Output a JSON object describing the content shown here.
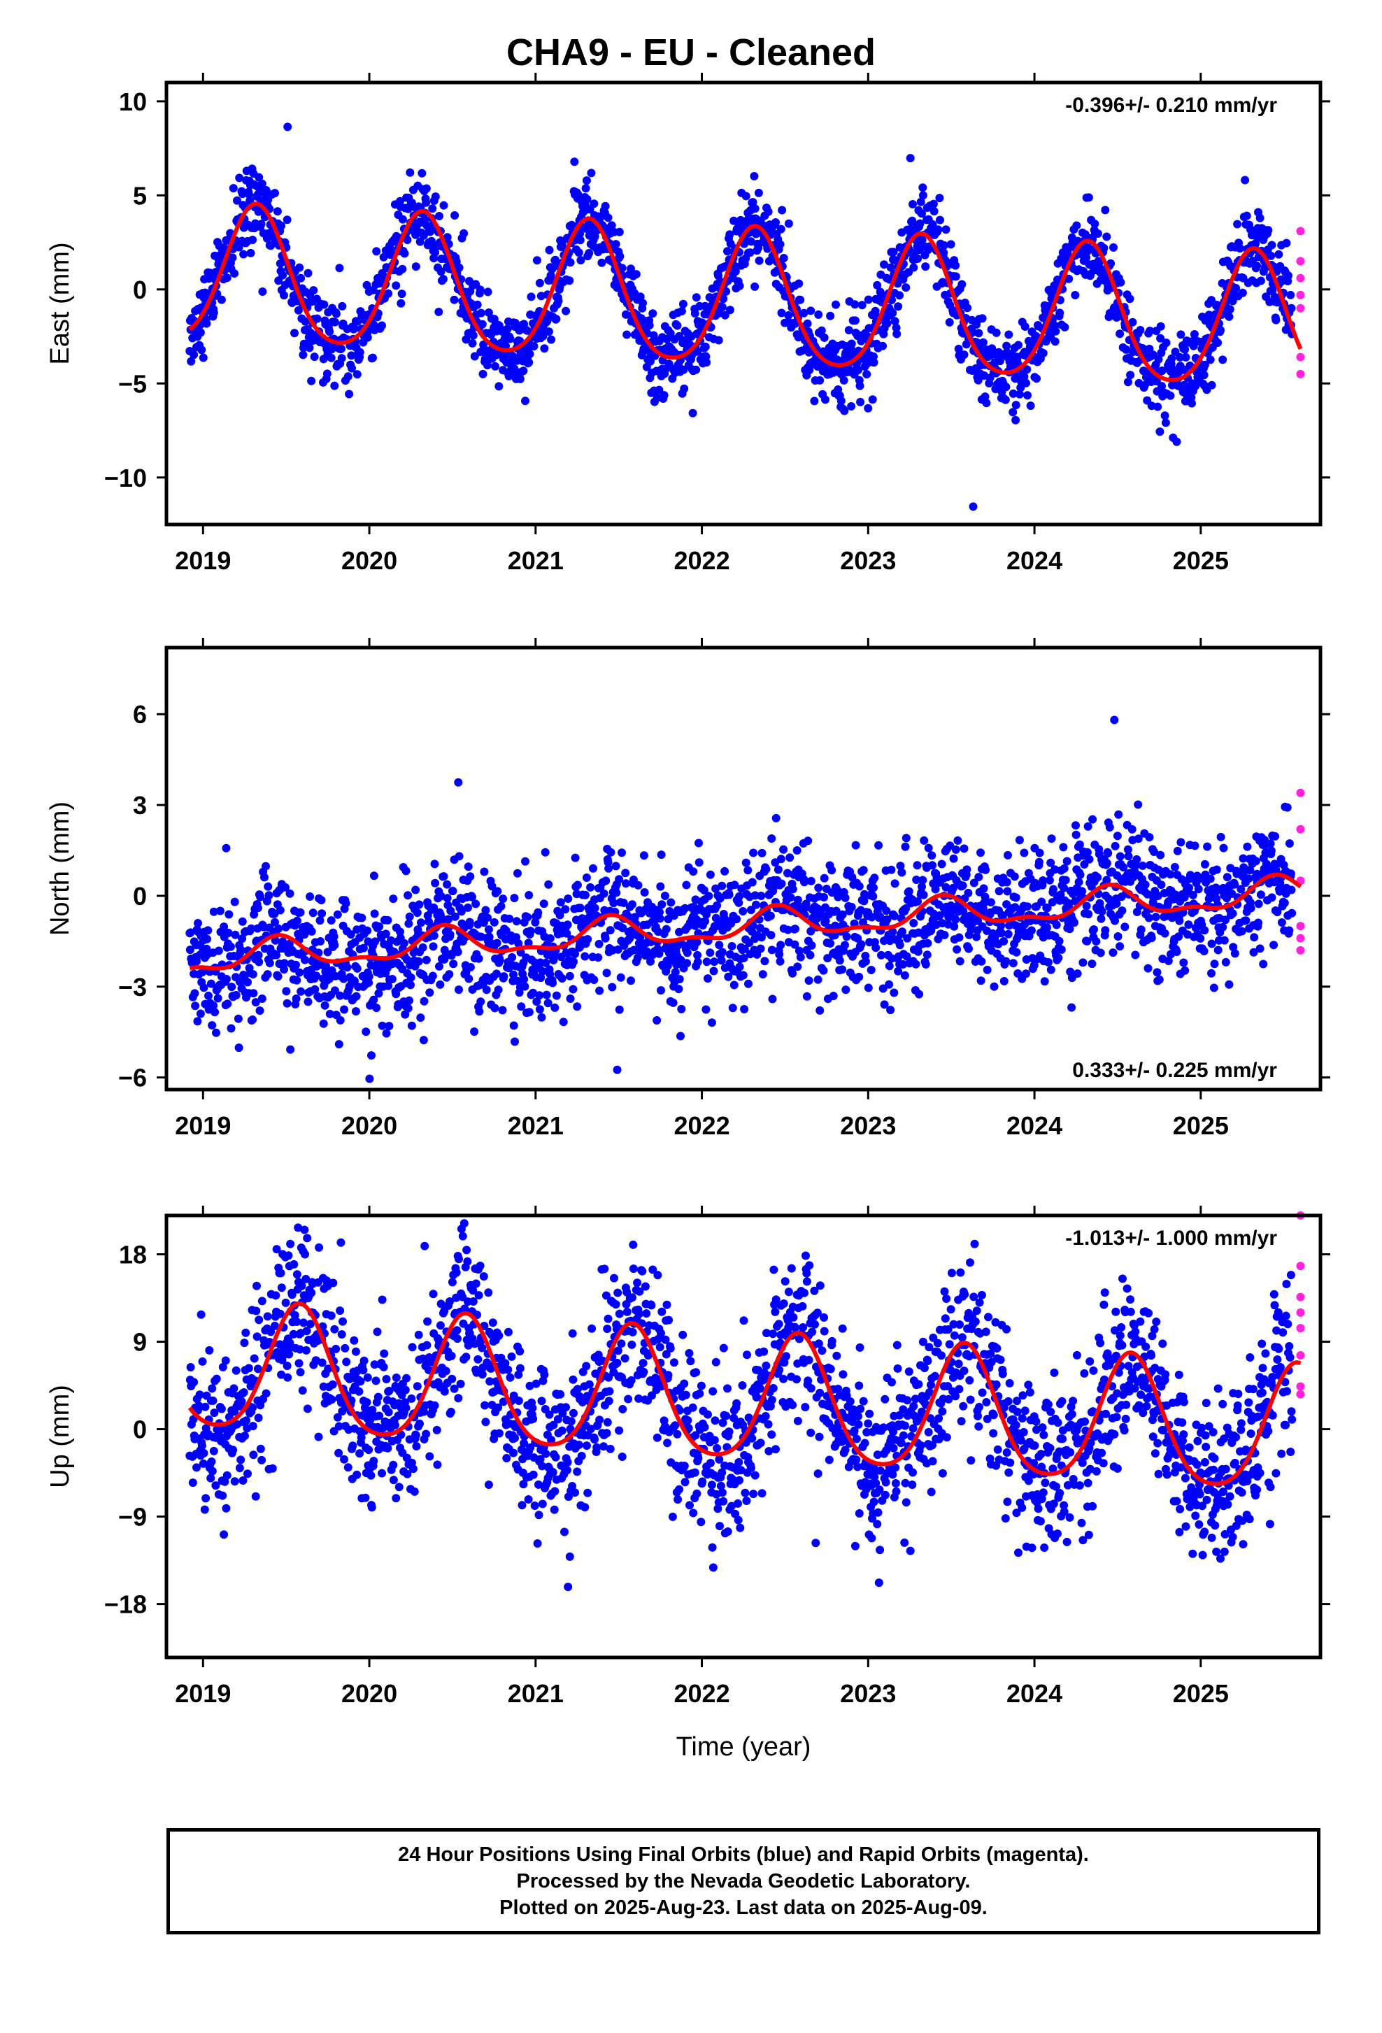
{
  "title": "CHA9  - EU - Cleaned",
  "colors": {
    "final_orbits": "#0000ff",
    "rapid_orbits": "#ff22dd",
    "model": "#ff0000",
    "axis": "#000000"
  },
  "footer": {
    "line1": "24 Hour Positions Using Final Orbits (blue) and Rapid Orbits (magenta).",
    "line2": "Processed by the Nevada Geodetic Laboratory.",
    "line3": "Plotted on 2025-Aug-23. Last data on 2025-Aug-09."
  },
  "chart_data": [
    {
      "type": "scatter",
      "component": "east",
      "ylabel": "East (mm)",
      "xlabel": "",
      "xlim": [
        2018.78,
        2025.72
      ],
      "ylim": [
        -12.5,
        11.0
      ],
      "xticks": [
        2019,
        2020,
        2021,
        2022,
        2023,
        2024,
        2025
      ],
      "yticks": [
        10,
        5,
        0,
        -5,
        -10
      ],
      "ytick_labels": [
        "10",
        "5",
        "0",
        "−5",
        "−10"
      ],
      "rate": "-0.396+/- 0.210 mm/yr",
      "rate_position": "top-right",
      "model": {
        "annual_amp": 3.6,
        "phase_peak": 0.32,
        "trend": -0.396,
        "offset": -0.6,
        "semi_amp": 0.5
      },
      "model_curve": {
        "x": [
          2018.92,
          2019.33,
          2019.92,
          2020.33,
          2020.92,
          2021.33,
          2021.92,
          2022.33,
          2022.92,
          2023.33,
          2023.92,
          2024.33,
          2024.92,
          2025.38,
          2025.6
        ],
        "y": [
          -2.5,
          3.9,
          -2.9,
          3.4,
          -3.3,
          3.0,
          -3.7,
          2.6,
          -4.2,
          2.2,
          -4.5,
          1.8,
          -4.9,
          1.5,
          -0.9
        ]
      },
      "series": [
        {
          "name": "Final Orbits",
          "x_range": [
            2018.92,
            2025.55
          ],
          "noise": 1.1
        },
        {
          "name": "Rapid Orbits",
          "x": [
            2025.6,
            2025.6,
            2025.6,
            2025.6,
            2025.6,
            2025.6,
            2025.6
          ],
          "y": [
            3.1,
            1.5,
            -0.3,
            -1.0,
            -3.6,
            -4.5,
            0.6
          ]
        }
      ]
    },
    {
      "type": "scatter",
      "component": "north",
      "ylabel": "North (mm)",
      "xlabel": "",
      "xlim": [
        2018.78,
        2025.72
      ],
      "ylim": [
        -6.4,
        8.2
      ],
      "xticks": [
        2019,
        2020,
        2021,
        2022,
        2023,
        2024,
        2025
      ],
      "yticks": [
        6,
        3,
        0,
        -3,
        -6
      ],
      "ytick_labels": [
        "6",
        "3",
        "0",
        "−3",
        "−6"
      ],
      "rate": "0.333+/- 0.225 mm/yr",
      "rate_position": "bottom-right",
      "model": {
        "annual_amp": 0.45,
        "phase_peak": 0.45,
        "trend": 0.333,
        "offset": -1.1,
        "semi_amp": 0.2
      },
      "model_curve": {
        "x": [
          2018.92,
          2019.4,
          2019.75,
          2020.4,
          2020.75,
          2021.4,
          2021.75,
          2022.4,
          2022.75,
          2023.4,
          2023.75,
          2024.4,
          2024.75,
          2025.45,
          2025.6
        ],
        "y": [
          -1.1,
          -0.4,
          -1.8,
          -0.1,
          -1.5,
          0.3,
          -1.2,
          0.6,
          -0.9,
          0.9,
          -0.6,
          1.3,
          -0.2,
          1.6,
          0.7
        ]
      },
      "series": [
        {
          "name": "Final Orbits",
          "x_range": [
            2018.92,
            2025.55
          ],
          "noise": 1.1
        },
        {
          "name": "Rapid Orbits",
          "x": [
            2025.6,
            2025.6,
            2025.6,
            2025.6,
            2025.6,
            2025.6
          ],
          "y": [
            3.4,
            2.2,
            0.5,
            -1.0,
            -1.4,
            -1.8
          ]
        }
      ]
    },
    {
      "type": "scatter",
      "component": "up",
      "ylabel": "Up (mm)",
      "xlabel": "Time (year)",
      "xlim": [
        2018.78,
        2025.72
      ],
      "ylim": [
        -23.5,
        22.0
      ],
      "xticks": [
        2019,
        2020,
        2021,
        2022,
        2023,
        2024,
        2025
      ],
      "yticks": [
        18,
        9,
        0,
        -9,
        -18
      ],
      "ytick_labels": [
        "18",
        "9",
        "0",
        "−9",
        "−18"
      ],
      "rate": "-1.013+/- 1.000 mm/yr",
      "rate_position": "top-right",
      "model": {
        "annual_amp": 6.5,
        "phase_peak": 0.58,
        "trend": -1.013,
        "offset": 3.0,
        "semi_amp": 1.0
      },
      "model_curve": {
        "x": [
          2018.92,
          2019.2,
          2019.58,
          2020.2,
          2020.58,
          2021.2,
          2021.58,
          2022.2,
          2022.58,
          2023.2,
          2023.58,
          2024.2,
          2024.58,
          2025.2,
          2025.6
        ],
        "y": [
          2.5,
          -3.0,
          9.8,
          -4.3,
          8.7,
          -5.5,
          7.7,
          -6.5,
          6.8,
          -7.5,
          5.6,
          -8.6,
          4.7,
          -9.5,
          3.5
        ]
      },
      "series": [
        {
          "name": "Final Orbits",
          "x_range": [
            2018.92,
            2025.55
          ],
          "noise": 4.2
        },
        {
          "name": "Rapid Orbits",
          "x": [
            2025.6,
            2025.6,
            2025.6,
            2025.6,
            2025.6,
            2025.6,
            2025.6,
            2025.6
          ],
          "y": [
            22.0,
            16.8,
            13.6,
            12.0,
            10.4,
            7.6,
            4.4,
            3.6
          ]
        }
      ]
    }
  ]
}
